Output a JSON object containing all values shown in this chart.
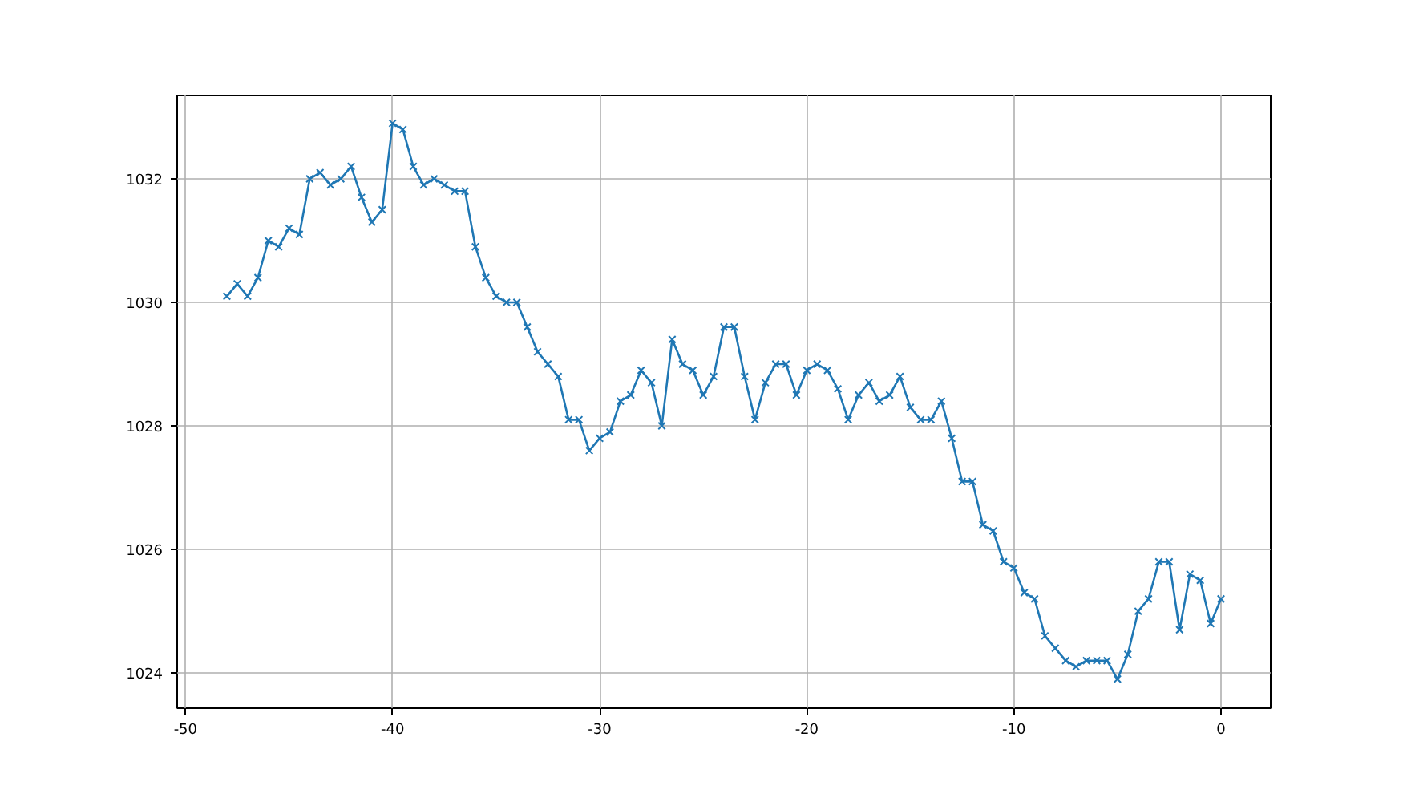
{
  "chart_data": {
    "type": "line",
    "x": [
      -48,
      -47.5,
      -47,
      -46.5,
      -46,
      -45.5,
      -45,
      -44.5,
      -44,
      -43.5,
      -43,
      -42.5,
      -42,
      -41.5,
      -41,
      -40.5,
      -40,
      -39.5,
      -39,
      -38.5,
      -38,
      -37.5,
      -37,
      -36.5,
      -36,
      -35.5,
      -35,
      -34.5,
      -34,
      -33.5,
      -33,
      -32.5,
      -32,
      -31.5,
      -31,
      -30.5,
      -30,
      -29.5,
      -29,
      -28.5,
      -28,
      -27.5,
      -27,
      -26.5,
      -26,
      -25.5,
      -25,
      -24.5,
      -24,
      -23.5,
      -23,
      -22.5,
      -22,
      -21.5,
      -21,
      -20.5,
      -20,
      -19.5,
      -19,
      -18.5,
      -18,
      -17.5,
      -17,
      -16.5,
      -16,
      -15.5,
      -15,
      -14.5,
      -14,
      -13.5,
      -13,
      -12.5,
      -12,
      -11.5,
      -11,
      -10.5,
      -10,
      -9.5,
      -9,
      -8.5,
      -8,
      -7.5,
      -7,
      -6.5,
      -6,
      -5.5,
      -5,
      -4.5,
      -4,
      -3.5,
      -3,
      -2.5,
      -2,
      -1.5,
      -1,
      -0.5,
      0
    ],
    "series": [
      {
        "color": "#1f77b4",
        "values": [
          1030.1,
          1030.3,
          1030.1,
          1030.4,
          1031.0,
          1030.9,
          1031.2,
          1031.1,
          1032.0,
          1032.1,
          1031.9,
          1032.0,
          1032.2,
          1031.7,
          1031.3,
          1031.5,
          1032.9,
          1032.8,
          1032.2,
          1031.9,
          1032.0,
          1031.9,
          1031.8,
          1031.8,
          1030.9,
          1030.4,
          1030.1,
          1030.0,
          1030.0,
          1029.6,
          1029.2,
          1029.0,
          1028.8,
          1028.1,
          1028.1,
          1027.6,
          1027.8,
          1027.9,
          1028.4,
          1028.5,
          1028.9,
          1028.7,
          1028.0,
          1029.4,
          1029.0,
          1028.9,
          1028.5,
          1028.8,
          1029.6,
          1029.6,
          1028.8,
          1028.1,
          1028.7,
          1029.0,
          1029.0,
          1028.5,
          1028.9,
          1029.0,
          1028.9,
          1028.6,
          1028.1,
          1028.5,
          1028.7,
          1028.4,
          1028.5,
          1028.8,
          1028.3,
          1028.1,
          1028.1,
          1028.4,
          1027.8,
          1027.1,
          1027.1,
          1026.4,
          1026.3,
          1025.8,
          1025.7,
          1025.3,
          1025.2,
          1024.6,
          1024.4,
          1024.2,
          1024.1,
          1024.2,
          1024.2,
          1024.2,
          1023.9,
          1024.3,
          1025.0,
          1025.2,
          1025.8,
          1025.8,
          1024.7,
          1025.6,
          1025.5,
          1024.8,
          1025.2
        ]
      }
    ],
    "xlim": [
      -50.4,
      2.4
    ],
    "ylim": [
      1023.43,
      1033.35
    ],
    "xticks": [
      -50,
      -40,
      -30,
      -20,
      -10,
      0
    ],
    "yticks": [
      1024,
      1026,
      1028,
      1030,
      1032
    ],
    "grid": true,
    "marker": "cross",
    "line_style": "solid"
  }
}
